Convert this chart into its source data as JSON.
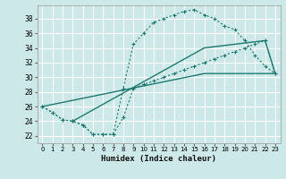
{
  "xlabel": "Humidex (Indice chaleur)",
  "bg_color": "#cce8e8",
  "grid_color": "#ffffff",
  "line_color": "#1a7a6e",
  "xlim": [
    -0.5,
    23.5
  ],
  "ylim": [
    21.0,
    39.8
  ],
  "xticks": [
    0,
    1,
    2,
    3,
    4,
    5,
    6,
    7,
    8,
    9,
    10,
    11,
    12,
    13,
    14,
    15,
    16,
    17,
    18,
    19,
    20,
    21,
    22,
    23
  ],
  "yticks": [
    22,
    24,
    26,
    28,
    30,
    32,
    34,
    36,
    38
  ],
  "curve1_x": [
    0,
    1,
    2,
    3,
    4,
    5,
    6,
    7,
    8,
    9,
    10,
    11,
    12,
    13,
    14,
    15,
    16,
    17,
    18,
    19,
    20,
    21,
    22,
    23
  ],
  "curve1_y": [
    26,
    25.2,
    24.2,
    24.0,
    23.5,
    22.2,
    22.2,
    22.2,
    28.5,
    34.5,
    36.0,
    37.5,
    38.0,
    38.5,
    39.0,
    39.2,
    38.5,
    38.0,
    37.0,
    36.5,
    35.0,
    33.0,
    31.5,
    30.5
  ],
  "curve2_x": [
    0,
    1,
    2,
    3,
    4,
    5,
    6,
    7,
    8,
    9,
    10,
    11,
    12,
    13,
    14,
    15,
    16,
    17,
    18,
    19,
    20,
    21,
    22,
    23
  ],
  "curve2_y": [
    26,
    25.2,
    24.2,
    24.0,
    23.5,
    22.2,
    22.2,
    22.2,
    24.5,
    28.5,
    29.0,
    29.5,
    30.0,
    30.5,
    31.0,
    31.5,
    32.0,
    32.5,
    33.0,
    33.5,
    34.0,
    34.5,
    35.0,
    30.5
  ],
  "line1_x": [
    0,
    16,
    23
  ],
  "line1_y": [
    26,
    30.5,
    30.5
  ],
  "line2_x": [
    3,
    16,
    22,
    23
  ],
  "line2_y": [
    24,
    34.0,
    35.0,
    30.5
  ]
}
